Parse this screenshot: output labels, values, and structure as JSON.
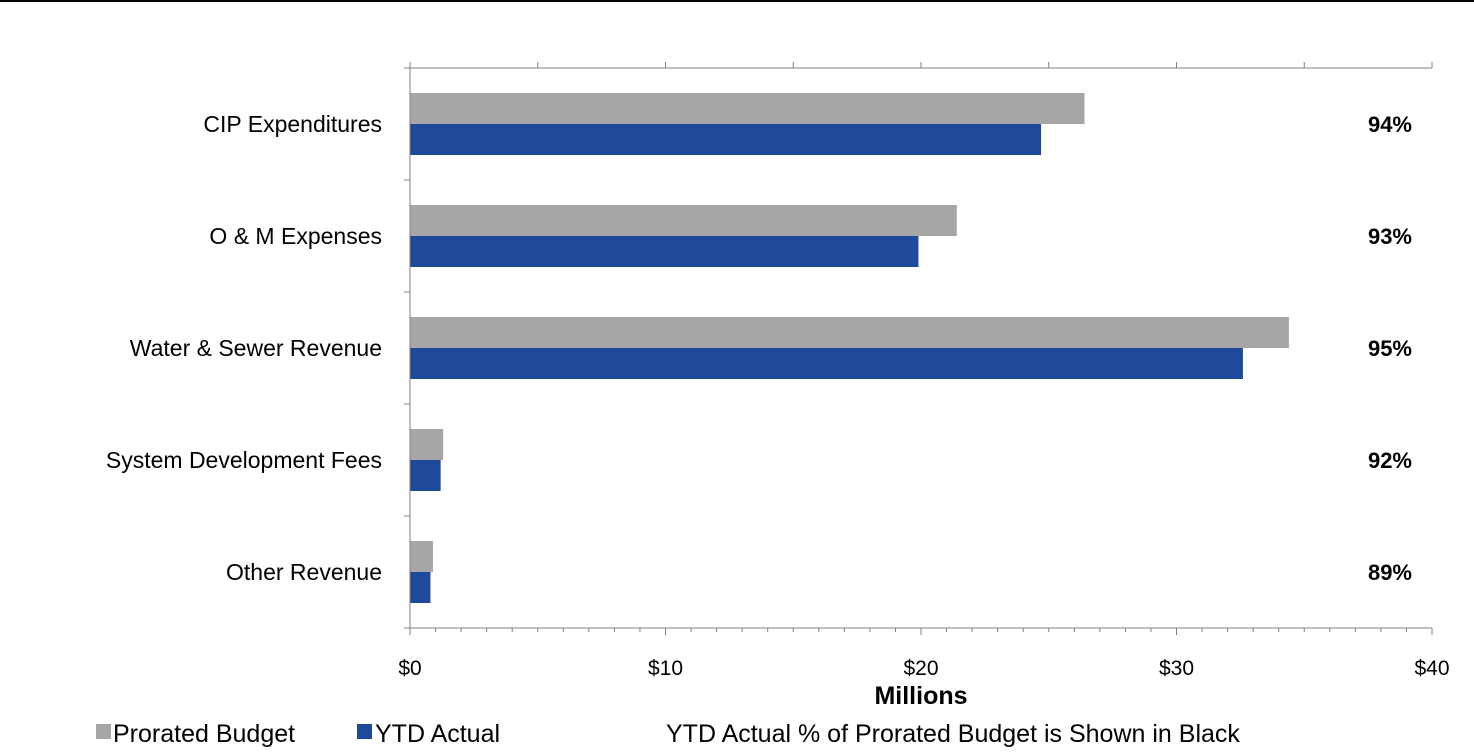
{
  "chart_data": {
    "type": "bar",
    "orientation": "horizontal",
    "categories": [
      "CIP Expenditures",
      "O & M Expenses",
      "Water & Sewer Revenue",
      "System Development Fees",
      "Other Revenue"
    ],
    "series": [
      {
        "name": "Prorated Budget",
        "color": "#A6A6A6",
        "values": [
          26.4,
          21.4,
          34.4,
          1.3,
          0.9
        ]
      },
      {
        "name": "YTD Actual",
        "color": "#1F4A9B",
        "values": [
          24.7,
          19.9,
          32.6,
          1.2,
          0.8
        ]
      }
    ],
    "percent_labels": [
      "94%",
      "93%",
      "95%",
      "92%",
      "89%"
    ],
    "x_ticks": [
      "$0",
      "$10",
      "$20",
      "$30",
      "$40"
    ],
    "xlim": [
      0,
      40
    ],
    "xlabel": "Millions",
    "legend_note": "YTD Actual % of Prorated Budget is Shown in Black",
    "legend_position": "bottom",
    "grid": false
  }
}
